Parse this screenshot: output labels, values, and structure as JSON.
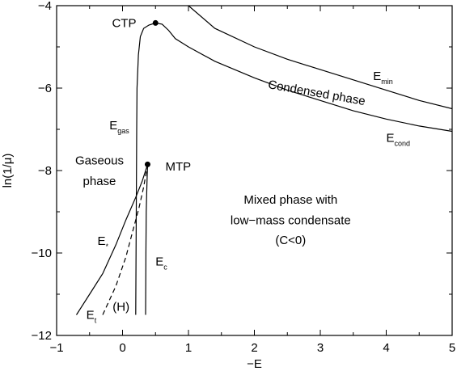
{
  "chart_data": {
    "type": "line",
    "title": "",
    "xlabel": "−E",
    "ylabel": "ln(1/μ)",
    "xlim": [
      -1,
      5
    ],
    "ylim": [
      -12,
      -4
    ],
    "grid": false,
    "x_ticks": [
      -1,
      0,
      1,
      2,
      3,
      4,
      5
    ],
    "x_tick_labels": [
      "−1",
      "0",
      "1",
      "2",
      "3",
      "4",
      "5"
    ],
    "y_ticks": [
      -12,
      -10,
      -8,
      -6,
      -4
    ],
    "y_tick_labels": [
      "−12",
      "−10",
      "−8",
      "−6",
      "−4"
    ],
    "series": [
      {
        "style": "solid",
        "points": [
          [
            1.0,
            -4.0
          ],
          [
            1.4,
            -4.55
          ],
          [
            2.0,
            -5.0
          ],
          [
            2.5,
            -5.3
          ],
          [
            3.0,
            -5.55
          ],
          [
            3.5,
            -5.8
          ],
          [
            4.0,
            -6.05
          ],
          [
            4.5,
            -6.3
          ],
          [
            5.0,
            -6.5
          ]
        ]
      },
      {
        "style": "solid",
        "points": [
          [
            0.2,
            -11.5
          ],
          [
            0.205,
            -10.0
          ],
          [
            0.21,
            -8.5
          ],
          [
            0.215,
            -7.0
          ],
          [
            0.22,
            -6.0
          ],
          [
            0.24,
            -5.2
          ],
          [
            0.27,
            -4.75
          ],
          [
            0.32,
            -4.55
          ],
          [
            0.4,
            -4.47
          ],
          [
            0.5,
            -4.42
          ],
          [
            0.6,
            -4.45
          ],
          [
            0.7,
            -4.6
          ],
          [
            0.8,
            -4.8
          ],
          [
            1.0,
            -5.0
          ],
          [
            1.4,
            -5.35
          ],
          [
            2.0,
            -5.75
          ],
          [
            2.5,
            -6.05
          ],
          [
            3.0,
            -6.3
          ],
          [
            3.5,
            -6.55
          ],
          [
            4.0,
            -6.75
          ],
          [
            4.5,
            -6.92
          ],
          [
            5.0,
            -7.05
          ]
        ]
      },
      {
        "style": "solid",
        "points": [
          [
            -0.7,
            -11.5
          ],
          [
            -0.5,
            -11.0
          ],
          [
            -0.3,
            -10.5
          ],
          [
            -0.1,
            -9.8
          ],
          [
            0.05,
            -9.2
          ],
          [
            0.2,
            -8.65
          ],
          [
            0.3,
            -8.25
          ],
          [
            0.38,
            -7.85
          ]
        ]
      },
      {
        "style": "dashed",
        "points": [
          [
            -0.3,
            -11.5
          ],
          [
            -0.1,
            -10.8
          ],
          [
            0.05,
            -10.1
          ],
          [
            0.15,
            -9.5
          ],
          [
            0.25,
            -8.9
          ],
          [
            0.32,
            -8.4
          ],
          [
            0.38,
            -7.85
          ]
        ]
      },
      {
        "style": "solid",
        "points": [
          [
            0.35,
            -11.5
          ],
          [
            0.355,
            -10.0
          ],
          [
            0.36,
            -9.0
          ],
          [
            0.37,
            -8.3
          ],
          [
            0.38,
            -7.85
          ]
        ]
      }
    ],
    "points": [
      {
        "label": "CTP",
        "x": 0.5,
        "y": -4.42
      },
      {
        "label": "MTP",
        "x": 0.38,
        "y": -7.85
      }
    ],
    "annotations": [
      {
        "id": "ctp",
        "text": "CTP",
        "x": -0.16,
        "y": -4.52
      },
      {
        "id": "mtp",
        "text": "MTP",
        "x": 0.65,
        "y": -8.0
      },
      {
        "id": "emin",
        "text": "E",
        "sub": "min",
        "x": 3.8,
        "y": -5.8
      },
      {
        "id": "econd",
        "text": "E",
        "sub": "cond",
        "x": 4.0,
        "y": -7.3
      },
      {
        "id": "egas",
        "text": "E",
        "sub": "gas",
        "x": -0.2,
        "y": -7.0
      },
      {
        "id": "estar",
        "text": "E",
        "sub": "*",
        "x": -0.38,
        "y": -9.8
      },
      {
        "id": "ec",
        "text": "E",
        "sub": "c",
        "x": 0.5,
        "y": -10.3
      },
      {
        "id": "et",
        "text": "E",
        "sub": "t",
        "x": -0.55,
        "y": -11.6
      },
      {
        "id": "h",
        "text": "(H)",
        "x": -0.15,
        "y": -11.4
      },
      {
        "id": "condensed",
        "text": "Condensed phase",
        "x": 2.2,
        "y": -6.0,
        "rotate": 10
      },
      {
        "id": "gaseous1",
        "text": "Gaseous",
        "x": -0.35,
        "y": -7.85
      },
      {
        "id": "gaseous2",
        "text": "phase",
        "x": -0.35,
        "y": -8.35
      },
      {
        "id": "mixed1",
        "text": "Mixed phase with",
        "x": 2.55,
        "y": -8.8
      },
      {
        "id": "mixed2",
        "text": "low−mass condensate",
        "x": 2.55,
        "y": -9.3
      },
      {
        "id": "mixed3",
        "text": "(C<0)",
        "x": 2.55,
        "y": -9.78
      }
    ]
  }
}
